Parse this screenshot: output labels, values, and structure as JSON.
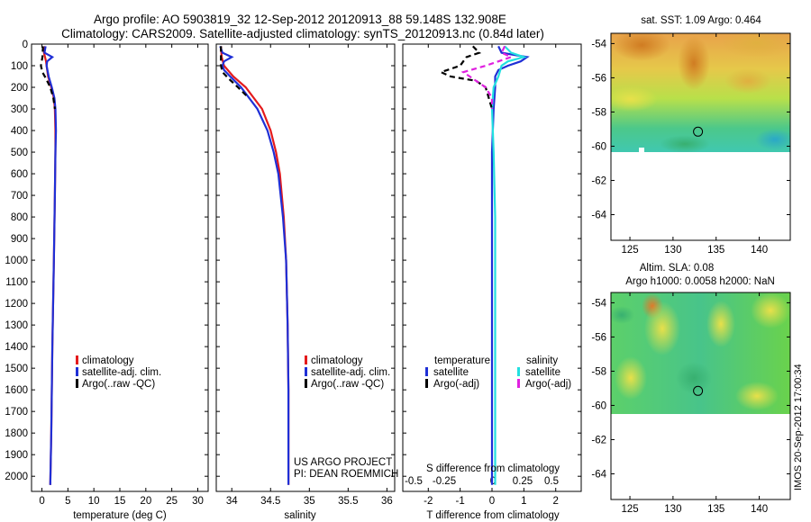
{
  "header": {
    "title_line1": "Argo profile: AO 5903819_32 12-Sep-2012 20120913_88 59.148S 132.908E",
    "title_line2": "Climatology: CARS2009. Satellite-adjusted climatology: synTS_20120913.nc (0.84d later)"
  },
  "credit": {
    "line1": "US ARGO PROJECT",
    "line2": "PI: DEAN ROEMMICH"
  },
  "stamp": "IMOS 20-Sep-2012 17:00:34",
  "colors": {
    "climatology": "#e41a1c",
    "satellite": "#1f2fd6",
    "argo": "#000000",
    "sat_diff_s": "#22e0e0",
    "argo_diff_s": "#e020e0"
  },
  "chart_data": [
    {
      "type": "line",
      "id": "temperature",
      "xlabel": "temperature (deg C)",
      "ylabel": "",
      "xlim": [
        -2,
        32
      ],
      "ylim": [
        2070,
        0
      ],
      "xticks": [
        0,
        5,
        10,
        15,
        20,
        25,
        30
      ],
      "yticks": [
        0,
        100,
        200,
        300,
        400,
        500,
        600,
        700,
        800,
        900,
        1000,
        1100,
        1200,
        1300,
        1400,
        1500,
        1600,
        1700,
        1800,
        1900,
        2000
      ],
      "legend": [
        "climatology",
        "satellite-adj. clim.",
        "Argo(..raw -QC)"
      ],
      "series": [
        {
          "name": "climatology",
          "color": "#e41a1c",
          "dash": "",
          "y": [
            10,
            40,
            80,
            100,
            150,
            200,
            250,
            300,
            400,
            500,
            700,
            1000,
            1400,
            1800,
            2040
          ],
          "x": [
            0.6,
            0.4,
            0.8,
            0.9,
            1.2,
            1.8,
            2.3,
            2.5,
            2.6,
            2.6,
            2.5,
            2.3,
            2.0,
            1.8,
            1.6
          ]
        },
        {
          "name": "satellite-adj. clim.",
          "color": "#1f2fd6",
          "dash": "",
          "y": [
            10,
            40,
            60,
            80,
            100,
            150,
            200,
            250,
            300,
            400,
            500,
            700,
            1000,
            1400,
            1800,
            2040
          ],
          "x": [
            0.7,
            0.5,
            2.0,
            1.0,
            0.9,
            1.3,
            1.9,
            2.4,
            2.6,
            2.7,
            2.6,
            2.5,
            2.3,
            2.0,
            1.8,
            1.6
          ]
        },
        {
          "name": "Argo(..raw -QC)",
          "color": "#000000",
          "dash": "6,4",
          "y": [
            10,
            60,
            100,
            130,
            160,
            200,
            250,
            300
          ],
          "x": [
            0.2,
            0.1,
            -0.2,
            0.1,
            0.8,
            1.6,
            2.2,
            2.5
          ]
        }
      ]
    },
    {
      "type": "line",
      "id": "salinity",
      "xlabel": "salinity",
      "ylabel": "",
      "xlim": [
        33.8,
        36.1
      ],
      "ylim": [
        2070,
        0
      ],
      "xticks": [
        34,
        34.5,
        35,
        35.5,
        36
      ],
      "legend": [
        "climatology",
        "satellite-adj. clim.",
        "Argo(..raw -QC)"
      ],
      "series": [
        {
          "name": "climatology",
          "color": "#e41a1c",
          "dash": "",
          "y": [
            10,
            60,
            100,
            150,
            200,
            300,
            400,
            500,
            600,
            800,
            1000,
            1300,
            1600,
            1900,
            2040
          ],
          "x": [
            33.86,
            33.87,
            33.9,
            34.02,
            34.18,
            34.39,
            34.5,
            34.57,
            34.62,
            34.67,
            34.7,
            34.72,
            34.73,
            34.73,
            34.73
          ]
        },
        {
          "name": "satellite-adj. clim.",
          "color": "#1f2fd6",
          "dash": "",
          "y": [
            10,
            40,
            60,
            80,
            100,
            120,
            150,
            200,
            300,
            400,
            500,
            600,
            800,
            1000,
            1300,
            1600,
            1900,
            2040
          ],
          "x": [
            33.85,
            33.88,
            34.0,
            33.9,
            33.88,
            33.9,
            33.98,
            34.12,
            34.33,
            34.46,
            34.54,
            34.6,
            34.66,
            34.7,
            34.72,
            34.73,
            34.73,
            34.73
          ]
        },
        {
          "name": "Argo(..raw -QC)",
          "color": "#000000",
          "dash": "6,4",
          "y": [
            10,
            50,
            100,
            130,
            160,
            200,
            250
          ],
          "x": [
            33.86,
            33.86,
            33.86,
            33.88,
            33.96,
            34.08,
            34.22
          ]
        }
      ]
    },
    {
      "type": "line",
      "id": "difference",
      "xlabel": "T difference from climatology",
      "x2label": "S difference from climatology",
      "ylabel": "",
      "xlim": [
        -2.8,
        2.8
      ],
      "ylim": [
        2070,
        0
      ],
      "xticks": [
        -2,
        -1,
        0,
        1,
        2
      ],
      "x2ticks": [
        "-0.5",
        "-0.25",
        "0",
        "0.25",
        "0.5"
      ],
      "legend_title_t": "temperature",
      "legend_title_s": "salinity",
      "legend_t": [
        "satellite",
        "Argo(-adj)"
      ],
      "legend_s": [
        "satellite",
        "Argo(-adj)"
      ],
      "series": [
        {
          "name": "satellite",
          "group": "temperature",
          "color": "#1f2fd6",
          "dash": "",
          "y": [
            10,
            40,
            60,
            80,
            100,
            120,
            150,
            200,
            300,
            500,
            1000,
            1500,
            2040
          ],
          "x": [
            0.2,
            0.3,
            1.1,
            0.9,
            0.5,
            0.2,
            0.1,
            0.1,
            0.05,
            0.0,
            0.0,
            0.0,
            0.0
          ]
        },
        {
          "name": "satellite",
          "group": "salinity",
          "color": "#22e0e0",
          "dash": "",
          "y": [
            10,
            40,
            60,
            80,
            100,
            150,
            200,
            300,
            500,
            800,
            1000,
            1500,
            2040
          ],
          "x": [
            0.4,
            0.6,
            1.0,
            0.5,
            0.3,
            0.2,
            0.05,
            0.0,
            0.05,
            0.1,
            0.1,
            0.1,
            0.1
          ]
        },
        {
          "name": "Argo(-adj)",
          "group": "temperature",
          "color": "#000000",
          "dash": "6,4",
          "y": [
            10,
            40,
            60,
            100,
            130,
            150,
            170,
            200,
            300
          ],
          "x": [
            -0.6,
            -0.4,
            -0.8,
            -1.0,
            -1.6,
            -1.3,
            -0.5,
            -0.2,
            0.0
          ]
        },
        {
          "name": "Argo(-adj)",
          "group": "salinity",
          "color": "#e020e0",
          "dash": "6,4",
          "y": [
            10,
            40,
            60,
            100,
            130,
            150,
            200,
            250,
            300
          ],
          "x": [
            0.4,
            0.3,
            0.6,
            -0.2,
            -0.9,
            -0.7,
            -0.2,
            0.0,
            0.0
          ]
        }
      ]
    },
    {
      "type": "heatmap",
      "id": "sst_map",
      "title": "sat. SST: 1.09 Argo: 0.464",
      "xticks": [
        125,
        130,
        135,
        140
      ],
      "yticks": [
        -54,
        -56,
        -58,
        -60,
        -62,
        -64
      ],
      "xlim": [
        122.8,
        143.6
      ],
      "ylim": [
        -65.5,
        -53.4
      ],
      "data_ylim": [
        -60,
        -53.4
      ],
      "argo_position": [
        132.9,
        -59.15
      ]
    },
    {
      "type": "heatmap",
      "id": "sla_map",
      "title_line1": "Altim. SLA: 0.08",
      "title_line2": "Argo h1000: 0.0058 h2000: NaN",
      "xticks": [
        125,
        130,
        135,
        140
      ],
      "yticks": [
        -54,
        -56,
        -58,
        -60,
        -62,
        -64
      ],
      "xlim": [
        122.8,
        143.6
      ],
      "ylim": [
        -65.5,
        -53.4
      ],
      "data_ylim": [
        -60,
        -53.4
      ],
      "argo_position": [
        132.9,
        -59.15
      ]
    }
  ]
}
